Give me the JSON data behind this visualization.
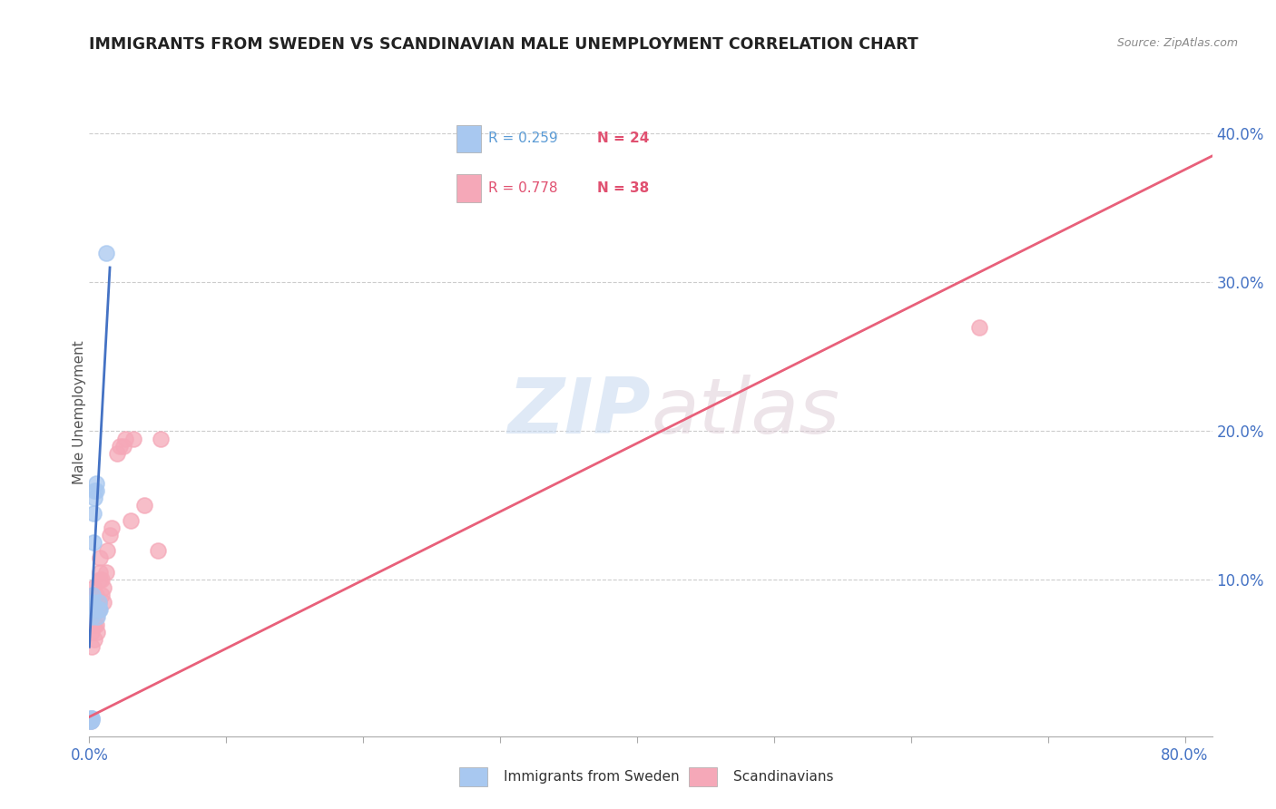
{
  "title": "IMMIGRANTS FROM SWEDEN VS SCANDINAVIAN MALE UNEMPLOYMENT CORRELATION CHART",
  "source": "Source: ZipAtlas.com",
  "ylabel": "Male Unemployment",
  "xlim": [
    0.0,
    0.82
  ],
  "ylim": [
    -0.005,
    0.43
  ],
  "yticks_right": [
    0.0,
    0.1,
    0.2,
    0.3,
    0.4
  ],
  "xticks": [
    0.0,
    0.1,
    0.2,
    0.3,
    0.4,
    0.5,
    0.6,
    0.7,
    0.8
  ],
  "watermark_zip": "ZIP",
  "watermark_atlas": "atlas",
  "legend_r1": "R = 0.259",
  "legend_n1": "N = 24",
  "legend_r2": "R = 0.778",
  "legend_n2": "N = 38",
  "blue_color": "#A8C8F0",
  "pink_color": "#F5A8B8",
  "blue_line_color": "#4472C4",
  "pink_line_color": "#E8607A",
  "blue_r_color": "#5B9BD5",
  "pink_r_color": "#E05070",
  "n_color": "#E05070",
  "sweden_x": [
    0.0008,
    0.0009,
    0.001,
    0.001,
    0.0012,
    0.0013,
    0.0014,
    0.0015,
    0.002,
    0.002,
    0.0022,
    0.0025,
    0.003,
    0.003,
    0.0032,
    0.004,
    0.004,
    0.005,
    0.005,
    0.006,
    0.007,
    0.0072,
    0.008,
    0.012
  ],
  "sweden_y": [
    0.005,
    0.006,
    0.005,
    0.006,
    0.006,
    0.007,
    0.006,
    0.007,
    0.007,
    0.075,
    0.085,
    0.09,
    0.08,
    0.125,
    0.145,
    0.155,
    0.16,
    0.16,
    0.165,
    0.075,
    0.08,
    0.085,
    0.08,
    0.32
  ],
  "scand_x": [
    0.0008,
    0.001,
    0.0015,
    0.002,
    0.002,
    0.003,
    0.003,
    0.003,
    0.004,
    0.004,
    0.005,
    0.005,
    0.005,
    0.006,
    0.006,
    0.007,
    0.007,
    0.008,
    0.008,
    0.008,
    0.009,
    0.009,
    0.01,
    0.01,
    0.012,
    0.013,
    0.015,
    0.016,
    0.02,
    0.022,
    0.025,
    0.026,
    0.03,
    0.032,
    0.04,
    0.05,
    0.052,
    0.65
  ],
  "scand_y": [
    0.005,
    0.006,
    0.055,
    0.065,
    0.07,
    0.08,
    0.09,
    0.095,
    0.06,
    0.07,
    0.07,
    0.075,
    0.09,
    0.065,
    0.08,
    0.08,
    0.085,
    0.1,
    0.105,
    0.115,
    0.09,
    0.1,
    0.085,
    0.095,
    0.105,
    0.12,
    0.13,
    0.135,
    0.185,
    0.19,
    0.19,
    0.195,
    0.14,
    0.195,
    0.15,
    0.12,
    0.195,
    0.27
  ],
  "blue_line_x": [
    0.0,
    0.015
  ],
  "blue_line_y_intercept": 0.055,
  "blue_line_slope": 17.0,
  "pink_line_x0": 0.0,
  "pink_line_x1": 0.82,
  "pink_line_y0": 0.008,
  "pink_line_y1": 0.385
}
